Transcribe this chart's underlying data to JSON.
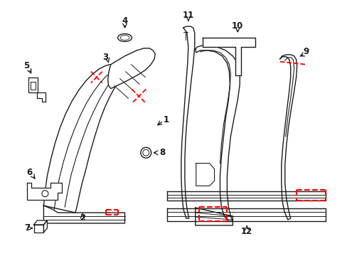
{
  "bg_color": "#ffffff",
  "line_color": "#1a1a1a",
  "red_color": "#ff0000",
  "figsize": [
    4.89,
    3.6
  ],
  "dpi": 100
}
